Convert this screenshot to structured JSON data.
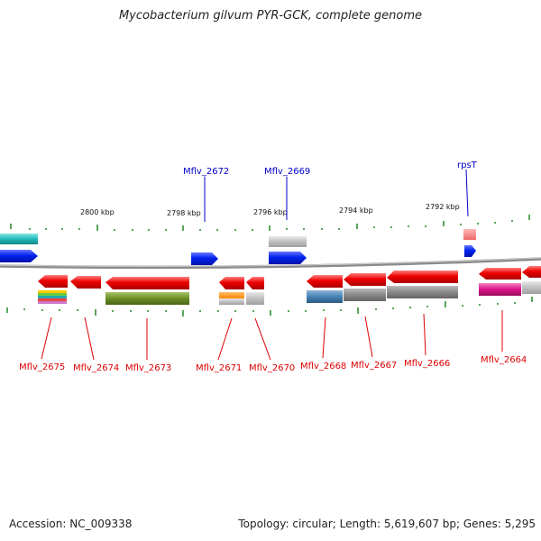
{
  "title": "Mycobacterium gilvum PYR-GCK, complete genome",
  "footer": {
    "accession": "Accession: NC_009338",
    "stats": "Topology: circular; Length: 5,619,607 bp; Genes: 5,295"
  },
  "scale_labels": [
    "2800 kbp",
    "2798 kbp",
    "2796 kbp",
    "2794 kbp",
    "2792 kbp"
  ],
  "genes_bottom": [
    "Mflv_2675",
    "Mflv_2674",
    "Mflv_2673",
    "Mflv_2671",
    "Mflv_2670",
    "Mflv_2668",
    "Mflv_2667",
    "Mflv_2666",
    "Mflv_2664"
  ],
  "genes_top": [
    "Mflv_2672",
    "Mflv_2669",
    "rpsT"
  ],
  "colors": {
    "gene_red": "#ee0000",
    "gene_blue": "#0022ee",
    "label_red": "#dd0000",
    "label_blue": "#0000cc",
    "tick_green": "#228822",
    "backbone": "#888888",
    "cds_cyan": "#22bbbb",
    "cds_olive": "#6b8e23",
    "cds_steel": "#4682b4",
    "cds_gray": "#888888",
    "cds_magenta": "#dd1188",
    "cds_orange": "#ff8800",
    "cds_pink": "#ff7777"
  }
}
